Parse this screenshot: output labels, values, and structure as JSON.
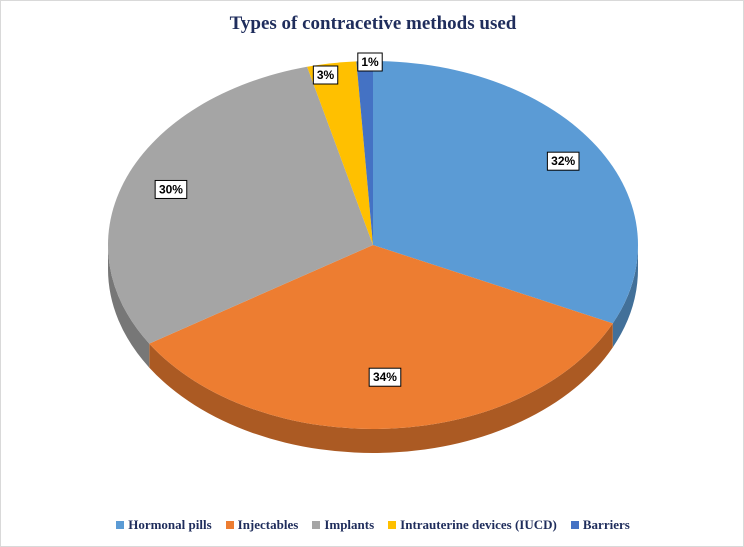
{
  "chart_data": {
    "type": "pie",
    "title": "Types of contracetive methods used",
    "categories": [
      "Hormonal pills",
      "Injectables",
      "Implants",
      "Intrauterine devices (IUCD)",
      "Barriers"
    ],
    "values": [
      32,
      34,
      30,
      3,
      1
    ],
    "labels": [
      "32%",
      "34%",
      "30%",
      "3%",
      "1%"
    ],
    "colors": [
      "#5b9bd5",
      "#ed7d31",
      "#a5a5a5",
      "#ffc000",
      "#4472c4"
    ],
    "legend_position": "bottom",
    "style": "3d"
  }
}
